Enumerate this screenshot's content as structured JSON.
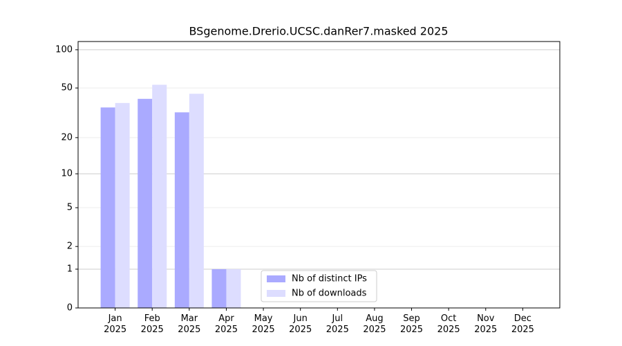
{
  "chart_data": {
    "type": "bar",
    "title": "BSgenome.Drerio.UCSC.danRer7.masked 2025",
    "categories": [
      "Jan\n2025",
      "Feb\n2025",
      "Mar\n2025",
      "Apr\n2025",
      "May\n2025",
      "Jun\n2025",
      "Jul\n2025",
      "Aug\n2025",
      "Sep\n2025",
      "Oct\n2025",
      "Nov\n2025",
      "Dec\n2025"
    ],
    "series": [
      {
        "name": "Nb of distinct IPs",
        "color": "#aaaaff",
        "values": [
          35,
          41,
          32,
          1,
          0,
          0,
          0,
          0,
          0,
          0,
          0,
          0
        ]
      },
      {
        "name": "Nb of downloads",
        "color": "#ddddff",
        "values": [
          38,
          53,
          45,
          1,
          0,
          0,
          0,
          0,
          0,
          0,
          0,
          0
        ]
      }
    ],
    "yscale": "log1p",
    "ylim": [
      0,
      116
    ],
    "yticks": [
      0,
      1,
      2,
      5,
      10,
      20,
      50,
      100
    ],
    "grid": true,
    "legend": "lower center"
  }
}
